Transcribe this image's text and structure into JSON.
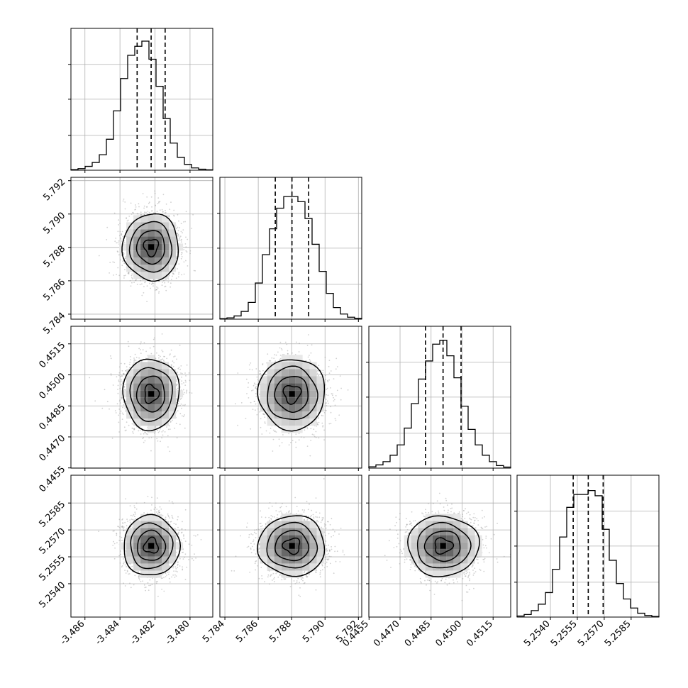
{
  "chart_data": {
    "type": "corner",
    "title": "",
    "params": [
      {
        "range": [
          -3.4868,
          -3.4787
        ],
        "ticks": [
          "-3.486",
          "-3.484",
          "-3.482",
          "-3.480"
        ],
        "tick_values": [
          -3.486,
          -3.484,
          -3.482,
          -3.48
        ],
        "median": -3.48222,
        "q16": -3.48302,
        "q84": -3.48142,
        "hist": [
          0.005,
          0.012,
          0.03,
          0.06,
          0.12,
          0.24,
          0.46,
          0.71,
          0.89,
          0.96,
          1.0,
          0.86,
          0.65,
          0.4,
          0.21,
          0.1,
          0.045,
          0.018,
          0.008,
          0.003
        ]
      },
      {
        "range": [
          5.7837,
          5.7922
        ],
        "ticks": [
          "5.784",
          "5.786",
          "5.788",
          "5.790",
          "5.792"
        ],
        "tick_values": [
          5.784,
          5.786,
          5.788,
          5.79,
          5.792
        ],
        "median": 5.78802,
        "q16": 5.78702,
        "q84": 5.78902,
        "hist": [
          0.004,
          0.01,
          0.025,
          0.06,
          0.13,
          0.28,
          0.5,
          0.7,
          0.86,
          0.95,
          0.95,
          0.91,
          0.78,
          0.58,
          0.37,
          0.2,
          0.09,
          0.04,
          0.015,
          0.006
        ]
      },
      {
        "range": [
          0.44549,
          0.45235
        ],
        "ticks": [
          "0.4455",
          "0.4470",
          "0.4485",
          "0.4500",
          "0.4515"
        ],
        "tick_values": [
          0.4455,
          0.447,
          0.4485,
          0.45,
          0.4515
        ],
        "median": 0.44908,
        "q16": 0.44823,
        "q84": 0.44995,
        "hist": [
          0.01,
          0.025,
          0.05,
          0.1,
          0.18,
          0.31,
          0.5,
          0.69,
          0.83,
          0.96,
          0.99,
          0.87,
          0.7,
          0.48,
          0.3,
          0.18,
          0.1,
          0.05,
          0.02,
          0.008
        ]
      },
      {
        "range": [
          5.25214,
          5.26005
        ],
        "ticks": [
          "5.2540",
          "5.2555",
          "5.2570",
          "5.2585"
        ],
        "tick_values": [
          5.254,
          5.2555,
          5.257,
          5.2585
        ],
        "median": 5.25611,
        "q16": 5.25527,
        "q84": 5.25694,
        "hist": [
          0.008,
          0.02,
          0.05,
          0.1,
          0.19,
          0.37,
          0.62,
          0.85,
          0.95,
          0.95,
          0.98,
          0.94,
          0.68,
          0.44,
          0.26,
          0.14,
          0.07,
          0.03,
          0.012,
          0.005
        ]
      }
    ],
    "pairs": [
      {
        "row": 1,
        "col": 0,
        "corr": 0.0,
        "sx": 0.0008,
        "sy": 0.001
      },
      {
        "row": 2,
        "col": 0,
        "corr": 0.0,
        "sx": 0.0008,
        "sy": 0.00086
      },
      {
        "row": 2,
        "col": 1,
        "corr": 0.0,
        "sx": 0.001,
        "sy": 0.00086
      },
      {
        "row": 3,
        "col": 0,
        "corr": 0.0,
        "sx": 0.0008,
        "sy": 0.00084
      },
      {
        "row": 3,
        "col": 1,
        "corr": 0.0,
        "sx": 0.001,
        "sy": 0.00084
      },
      {
        "row": 3,
        "col": 2,
        "corr": 0.0,
        "sx": 0.00086,
        "sy": 0.00084
      }
    ],
    "quantiles": [
      0.16,
      0.5,
      0.84
    ],
    "contour_levels": [
      0.5,
      1.0,
      1.5,
      2.0
    ],
    "grid": true
  }
}
